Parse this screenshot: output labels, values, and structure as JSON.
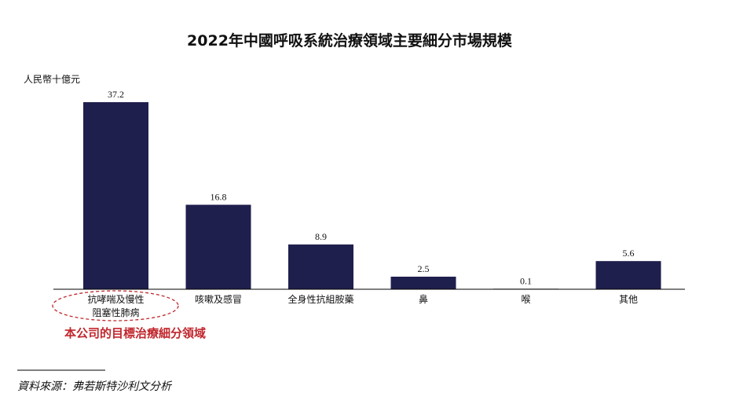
{
  "colors": {
    "bar": "#1f1f4d",
    "highlight": "#c0272d",
    "baseline": "#000000"
  },
  "chart_data": {
    "type": "bar",
    "title": "2022年中國呼吸系統治療領域主要細分市場規模",
    "unit_label": "人民幣十億元",
    "categories": [
      [
        "抗哮喘及慢性",
        "阻塞性肺病"
      ],
      [
        "咳嗽及感冒"
      ],
      [
        "全身性抗組胺藥"
      ],
      [
        "鼻"
      ],
      [
        "喉"
      ],
      [
        "其他"
      ]
    ],
    "values": [
      37.2,
      16.8,
      8.9,
      2.5,
      0.1,
      5.6
    ],
    "value_labels": [
      "37.2",
      "16.8",
      "8.9",
      "2.5",
      "0.1",
      "5.6"
    ],
    "ylim": [
      0,
      37.2
    ],
    "grid": false,
    "highlight_index": 0,
    "annotation": "本公司的目標治療細分領域"
  },
  "source": "資料來源：弗若斯特沙利文分析"
}
